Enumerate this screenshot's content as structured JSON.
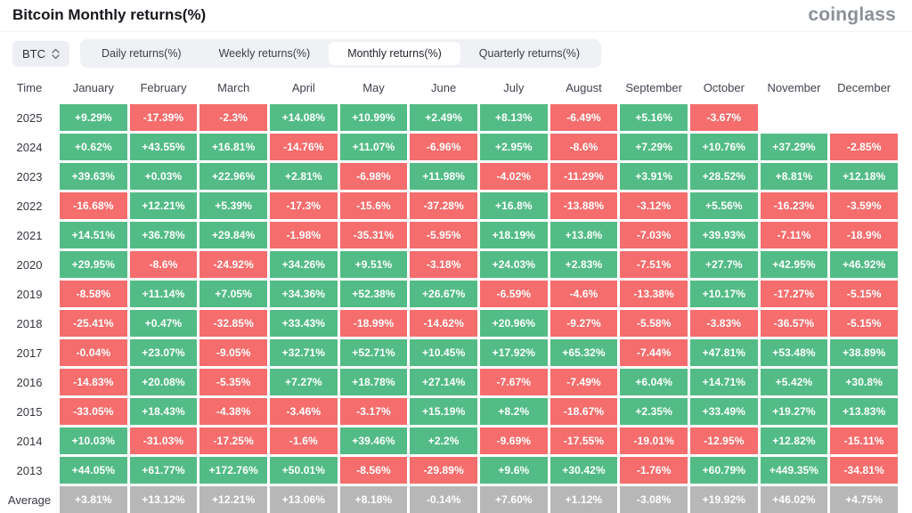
{
  "header": {
    "title": "Bitcoin Monthly returns(%)",
    "logo": "coinglass"
  },
  "controls": {
    "symbol": "BTC",
    "tabs": [
      {
        "id": "daily",
        "label": "Daily returns(%)",
        "active": false
      },
      {
        "id": "weekly",
        "label": "Weekly returns(%)",
        "active": false
      },
      {
        "id": "monthly",
        "label": "Monthly returns(%)",
        "active": true
      },
      {
        "id": "quarterly",
        "label": "Quarterly returns(%)",
        "active": false
      }
    ]
  },
  "colors": {
    "positive": "#53bc86",
    "negative": "#f56d6d",
    "average": "#b7b7b7"
  },
  "table": {
    "time_header": "Time",
    "months": [
      "January",
      "February",
      "March",
      "April",
      "May",
      "June",
      "July",
      "August",
      "September",
      "October",
      "November",
      "December"
    ],
    "rows": [
      {
        "time": "2025",
        "average": false,
        "values": [
          "+9.29%",
          "-17.39%",
          "-2.3%",
          "+14.08%",
          "+10.99%",
          "+2.49%",
          "+8.13%",
          "-6.49%",
          "+5.16%",
          "-3.67%",
          "",
          ""
        ]
      },
      {
        "time": "2024",
        "average": false,
        "values": [
          "+0.62%",
          "+43.55%",
          "+16.81%",
          "-14.76%",
          "+11.07%",
          "-6.96%",
          "+2.95%",
          "-8.6%",
          "+7.29%",
          "+10.76%",
          "+37.29%",
          "-2.85%"
        ]
      },
      {
        "time": "2023",
        "average": false,
        "values": [
          "+39.63%",
          "+0.03%",
          "+22.96%",
          "+2.81%",
          "-6.98%",
          "+11.98%",
          "-4.02%",
          "-11.29%",
          "+3.91%",
          "+28.52%",
          "+8.81%",
          "+12.18%"
        ]
      },
      {
        "time": "2022",
        "average": false,
        "values": [
          "-16.68%",
          "+12.21%",
          "+5.39%",
          "-17.3%",
          "-15.6%",
          "-37.28%",
          "+16.8%",
          "-13.88%",
          "-3.12%",
          "+5.56%",
          "-16.23%",
          "-3.59%"
        ]
      },
      {
        "time": "2021",
        "average": false,
        "values": [
          "+14.51%",
          "+36.78%",
          "+29.84%",
          "-1.98%",
          "-35.31%",
          "-5.95%",
          "+18.19%",
          "+13.8%",
          "-7.03%",
          "+39.93%",
          "-7.11%",
          "-18.9%"
        ]
      },
      {
        "time": "2020",
        "average": false,
        "values": [
          "+29.95%",
          "-8.6%",
          "-24.92%",
          "+34.26%",
          "+9.51%",
          "-3.18%",
          "+24.03%",
          "+2.83%",
          "-7.51%",
          "+27.7%",
          "+42.95%",
          "+46.92%"
        ]
      },
      {
        "time": "2019",
        "average": false,
        "values": [
          "-8.58%",
          "+11.14%",
          "+7.05%",
          "+34.36%",
          "+52.38%",
          "+26.67%",
          "-6.59%",
          "-4.6%",
          "-13.38%",
          "+10.17%",
          "-17.27%",
          "-5.15%"
        ]
      },
      {
        "time": "2018",
        "average": false,
        "values": [
          "-25.41%",
          "+0.47%",
          "-32.85%",
          "+33.43%",
          "-18.99%",
          "-14.62%",
          "+20.96%",
          "-9.27%",
          "-5.58%",
          "-3.83%",
          "-36.57%",
          "-5.15%"
        ]
      },
      {
        "time": "2017",
        "average": false,
        "values": [
          "-0.04%",
          "+23.07%",
          "-9.05%",
          "+32.71%",
          "+52.71%",
          "+10.45%",
          "+17.92%",
          "+65.32%",
          "-7.44%",
          "+47.81%",
          "+53.48%",
          "+38.89%"
        ]
      },
      {
        "time": "2016",
        "average": false,
        "values": [
          "-14.83%",
          "+20.08%",
          "-5.35%",
          "+7.27%",
          "+18.78%",
          "+27.14%",
          "-7.67%",
          "-7.49%",
          "+6.04%",
          "+14.71%",
          "+5.42%",
          "+30.8%"
        ]
      },
      {
        "time": "2015",
        "average": false,
        "values": [
          "-33.05%",
          "+18.43%",
          "-4.38%",
          "-3.46%",
          "-3.17%",
          "+15.19%",
          "+8.2%",
          "-18.67%",
          "+2.35%",
          "+33.49%",
          "+19.27%",
          "+13.83%"
        ]
      },
      {
        "time": "2014",
        "average": false,
        "values": [
          "+10.03%",
          "-31.03%",
          "-17.25%",
          "-1.6%",
          "+39.46%",
          "+2.2%",
          "-9.69%",
          "-17.55%",
          "-19.01%",
          "-12.95%",
          "+12.82%",
          "-15.11%"
        ]
      },
      {
        "time": "2013",
        "average": false,
        "values": [
          "+44.05%",
          "+61.77%",
          "+172.76%",
          "+50.01%",
          "-8.56%",
          "-29.89%",
          "+9.6%",
          "+30.42%",
          "-1.76%",
          "+60.79%",
          "+449.35%",
          "-34.81%"
        ]
      },
      {
        "time": "Average",
        "average": true,
        "values": [
          "+3.81%",
          "+13.12%",
          "+12.21%",
          "+13.06%",
          "+8.18%",
          "-0.14%",
          "+7.60%",
          "+1.12%",
          "-3.08%",
          "+19.92%",
          "+46.02%",
          "+4.75%"
        ]
      }
    ]
  }
}
